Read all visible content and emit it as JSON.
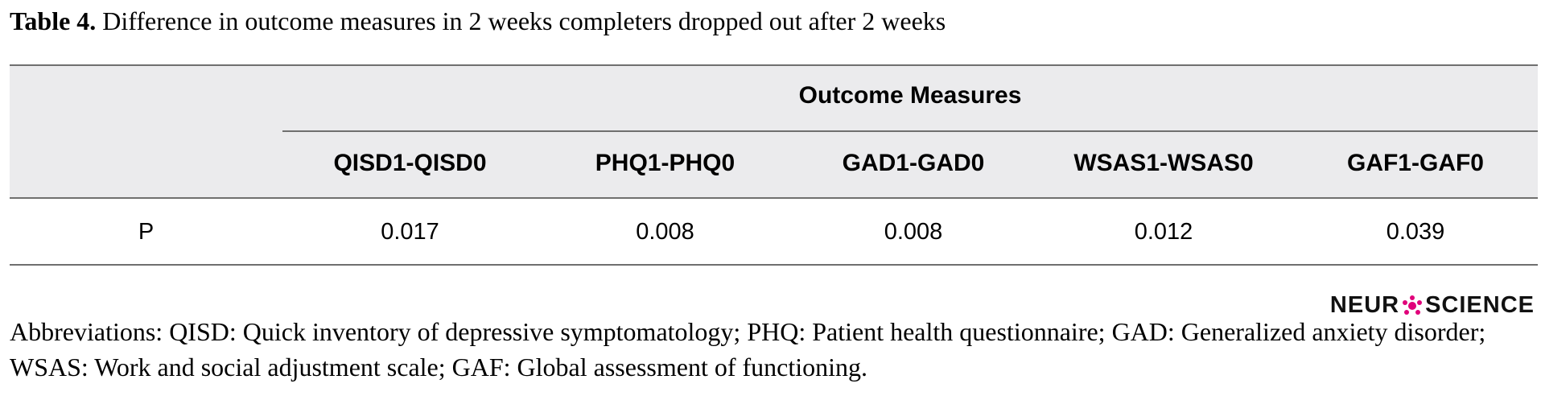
{
  "caption": {
    "label": "Table 4.",
    "text": " Difference in outcome measures in 2 weeks completers dropped out after 2 weeks"
  },
  "table": {
    "group_header": "Outcome Measures",
    "row_header_label": "",
    "columns": [
      "QISD1-QISD0",
      "PHQ1-PHQ0",
      "GAD1-GAD0",
      "WSAS1-WSAS0",
      "GAF1-GAF0"
    ],
    "rows": [
      {
        "label": "P",
        "values": [
          "0.017",
          "0.008",
          "0.008",
          "0.012",
          "0.039"
        ]
      }
    ]
  },
  "footnote": "Abbreviations: QISD: Quick inventory of depressive symptomatology; PHQ: Patient health questionnaire; GAD: Generalized anxiety disorder; WSAS: Work and social adjustment scale; GAF: Global assessment of functioning.",
  "logo": {
    "left": "NEUR",
    "right": "SCIENCE",
    "accent_color": "#e0007a"
  }
}
